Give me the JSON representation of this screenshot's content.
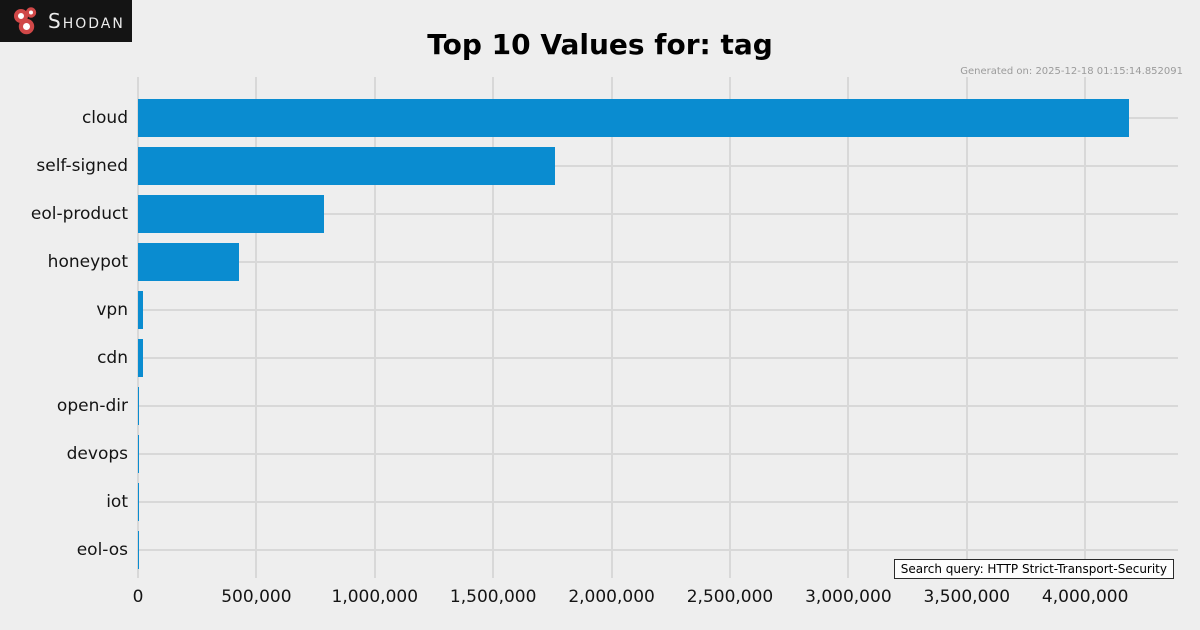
{
  "logo": {
    "brand": "SHODAN",
    "bg_color": "#141414",
    "icon_red": "#d04848"
  },
  "header": {
    "title": "Top 10 Values for: tag",
    "generated_on": "Generated on: 2025-12-18 01:15:14.852091"
  },
  "footer": {
    "search_query_label": "Search query: HTTP Strict-Transport-Security"
  },
  "chart_data": {
    "type": "bar",
    "orientation": "horizontal",
    "title": "Top 10 Values for: tag",
    "categories": [
      "cloud",
      "self-signed",
      "eol-product",
      "honeypot",
      "vpn",
      "cdn",
      "open-dir",
      "devops",
      "iot",
      "eol-os"
    ],
    "values": [
      4185000,
      1762000,
      785000,
      428000,
      22000,
      21000,
      3500,
      3000,
      2500,
      2000
    ],
    "xlabel": "",
    "ylabel": "",
    "xlim": [
      0,
      4392000
    ],
    "x_ticks": [
      0,
      500000,
      1000000,
      1500000,
      2000000,
      2500000,
      3000000,
      3500000,
      4000000
    ],
    "x_tick_labels": [
      "0",
      "500,000",
      "1,000,000",
      "1,500,000",
      "2,000,000",
      "2,500,000",
      "3,000,000",
      "3,500,000",
      "4,000,000"
    ],
    "bar_color": "#0a8cd0",
    "background_color": "#eeeeee",
    "gridline_color": "#d8d8d8",
    "grid": true,
    "legend": false
  }
}
